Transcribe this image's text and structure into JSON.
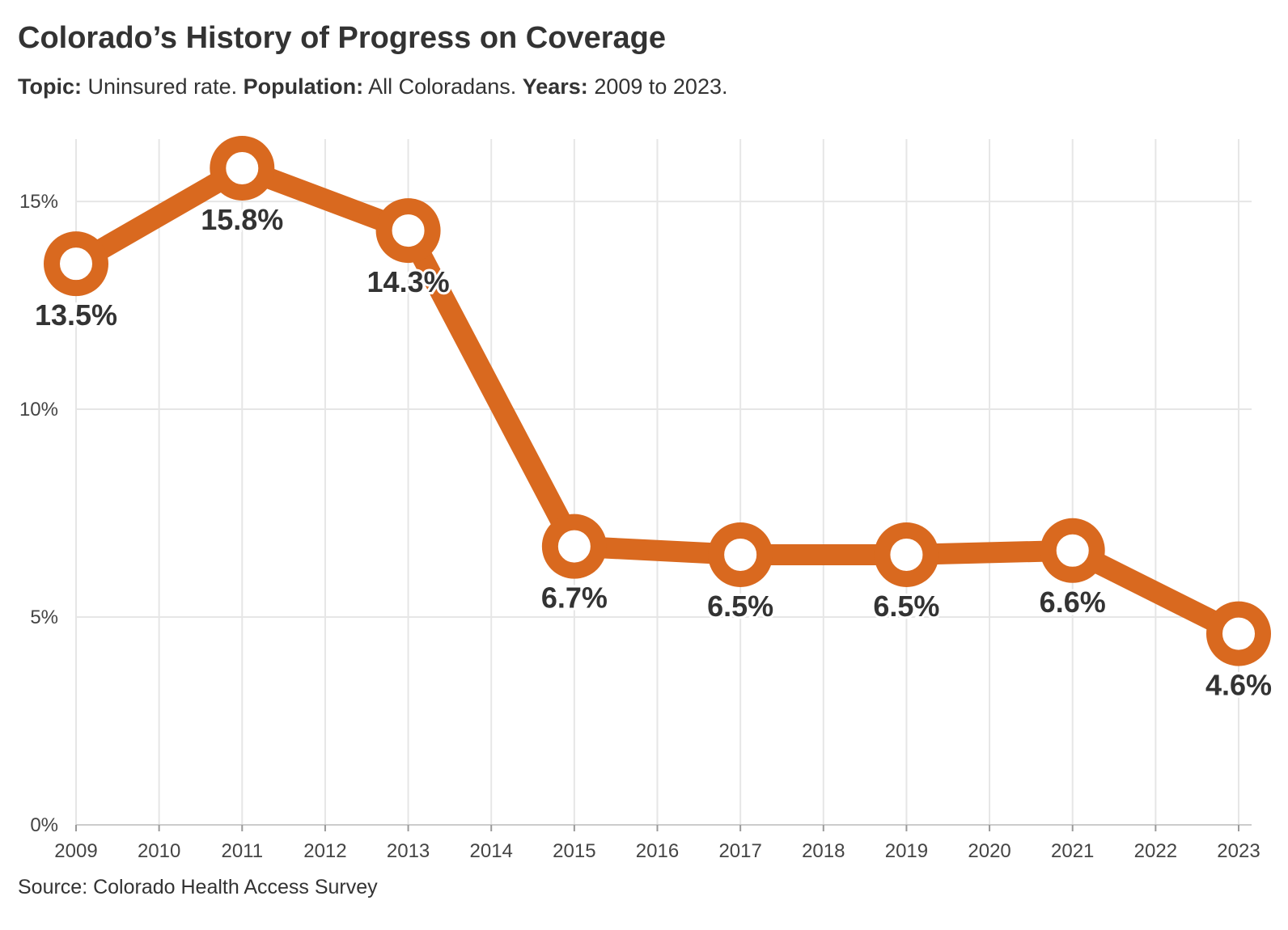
{
  "header": {
    "title": "Colorado’s History of Progress on Coverage",
    "subtitle": {
      "topic_label": "Topic:",
      "topic_value": "Uninsured rate.",
      "population_label": "Population:",
      "population_value": "All Coloradans.",
      "years_label": "Years:",
      "years_value": "2009 to 2023."
    }
  },
  "chart_data": {
    "type": "line",
    "title": "Colorado’s History of Progress on Coverage",
    "xlabel": "",
    "ylabel": "",
    "x_ticks": [
      "2009",
      "2010",
      "2011",
      "2012",
      "2013",
      "2014",
      "2015",
      "2016",
      "2017",
      "2018",
      "2019",
      "2020",
      "2021",
      "2022",
      "2023"
    ],
    "xlim": [
      2009,
      2023
    ],
    "ylim": [
      0,
      16.5
    ],
    "y_ticks": [
      0,
      5,
      10,
      15
    ],
    "y_tick_labels": [
      "0%",
      "5%",
      "10%",
      "15%"
    ],
    "grid": true,
    "legend": "none",
    "series": [
      {
        "color": "#d9691f",
        "points": [
          {
            "x": 2009,
            "y": 13.5,
            "label": "13.5%"
          },
          {
            "x": 2011,
            "y": 15.8,
            "label": "15.8%"
          },
          {
            "x": 2013,
            "y": 14.3,
            "label": "14.3%"
          },
          {
            "x": 2015,
            "y": 6.7,
            "label": "6.7%"
          },
          {
            "x": 2017,
            "y": 6.5,
            "label": "6.5%"
          },
          {
            "x": 2019,
            "y": 6.5,
            "label": "6.5%"
          },
          {
            "x": 2021,
            "y": 6.6,
            "label": "6.6%"
          },
          {
            "x": 2023,
            "y": 4.6,
            "label": "4.6%"
          }
        ]
      }
    ]
  },
  "footer": {
    "source": "Source: Colorado Health Access Survey"
  }
}
